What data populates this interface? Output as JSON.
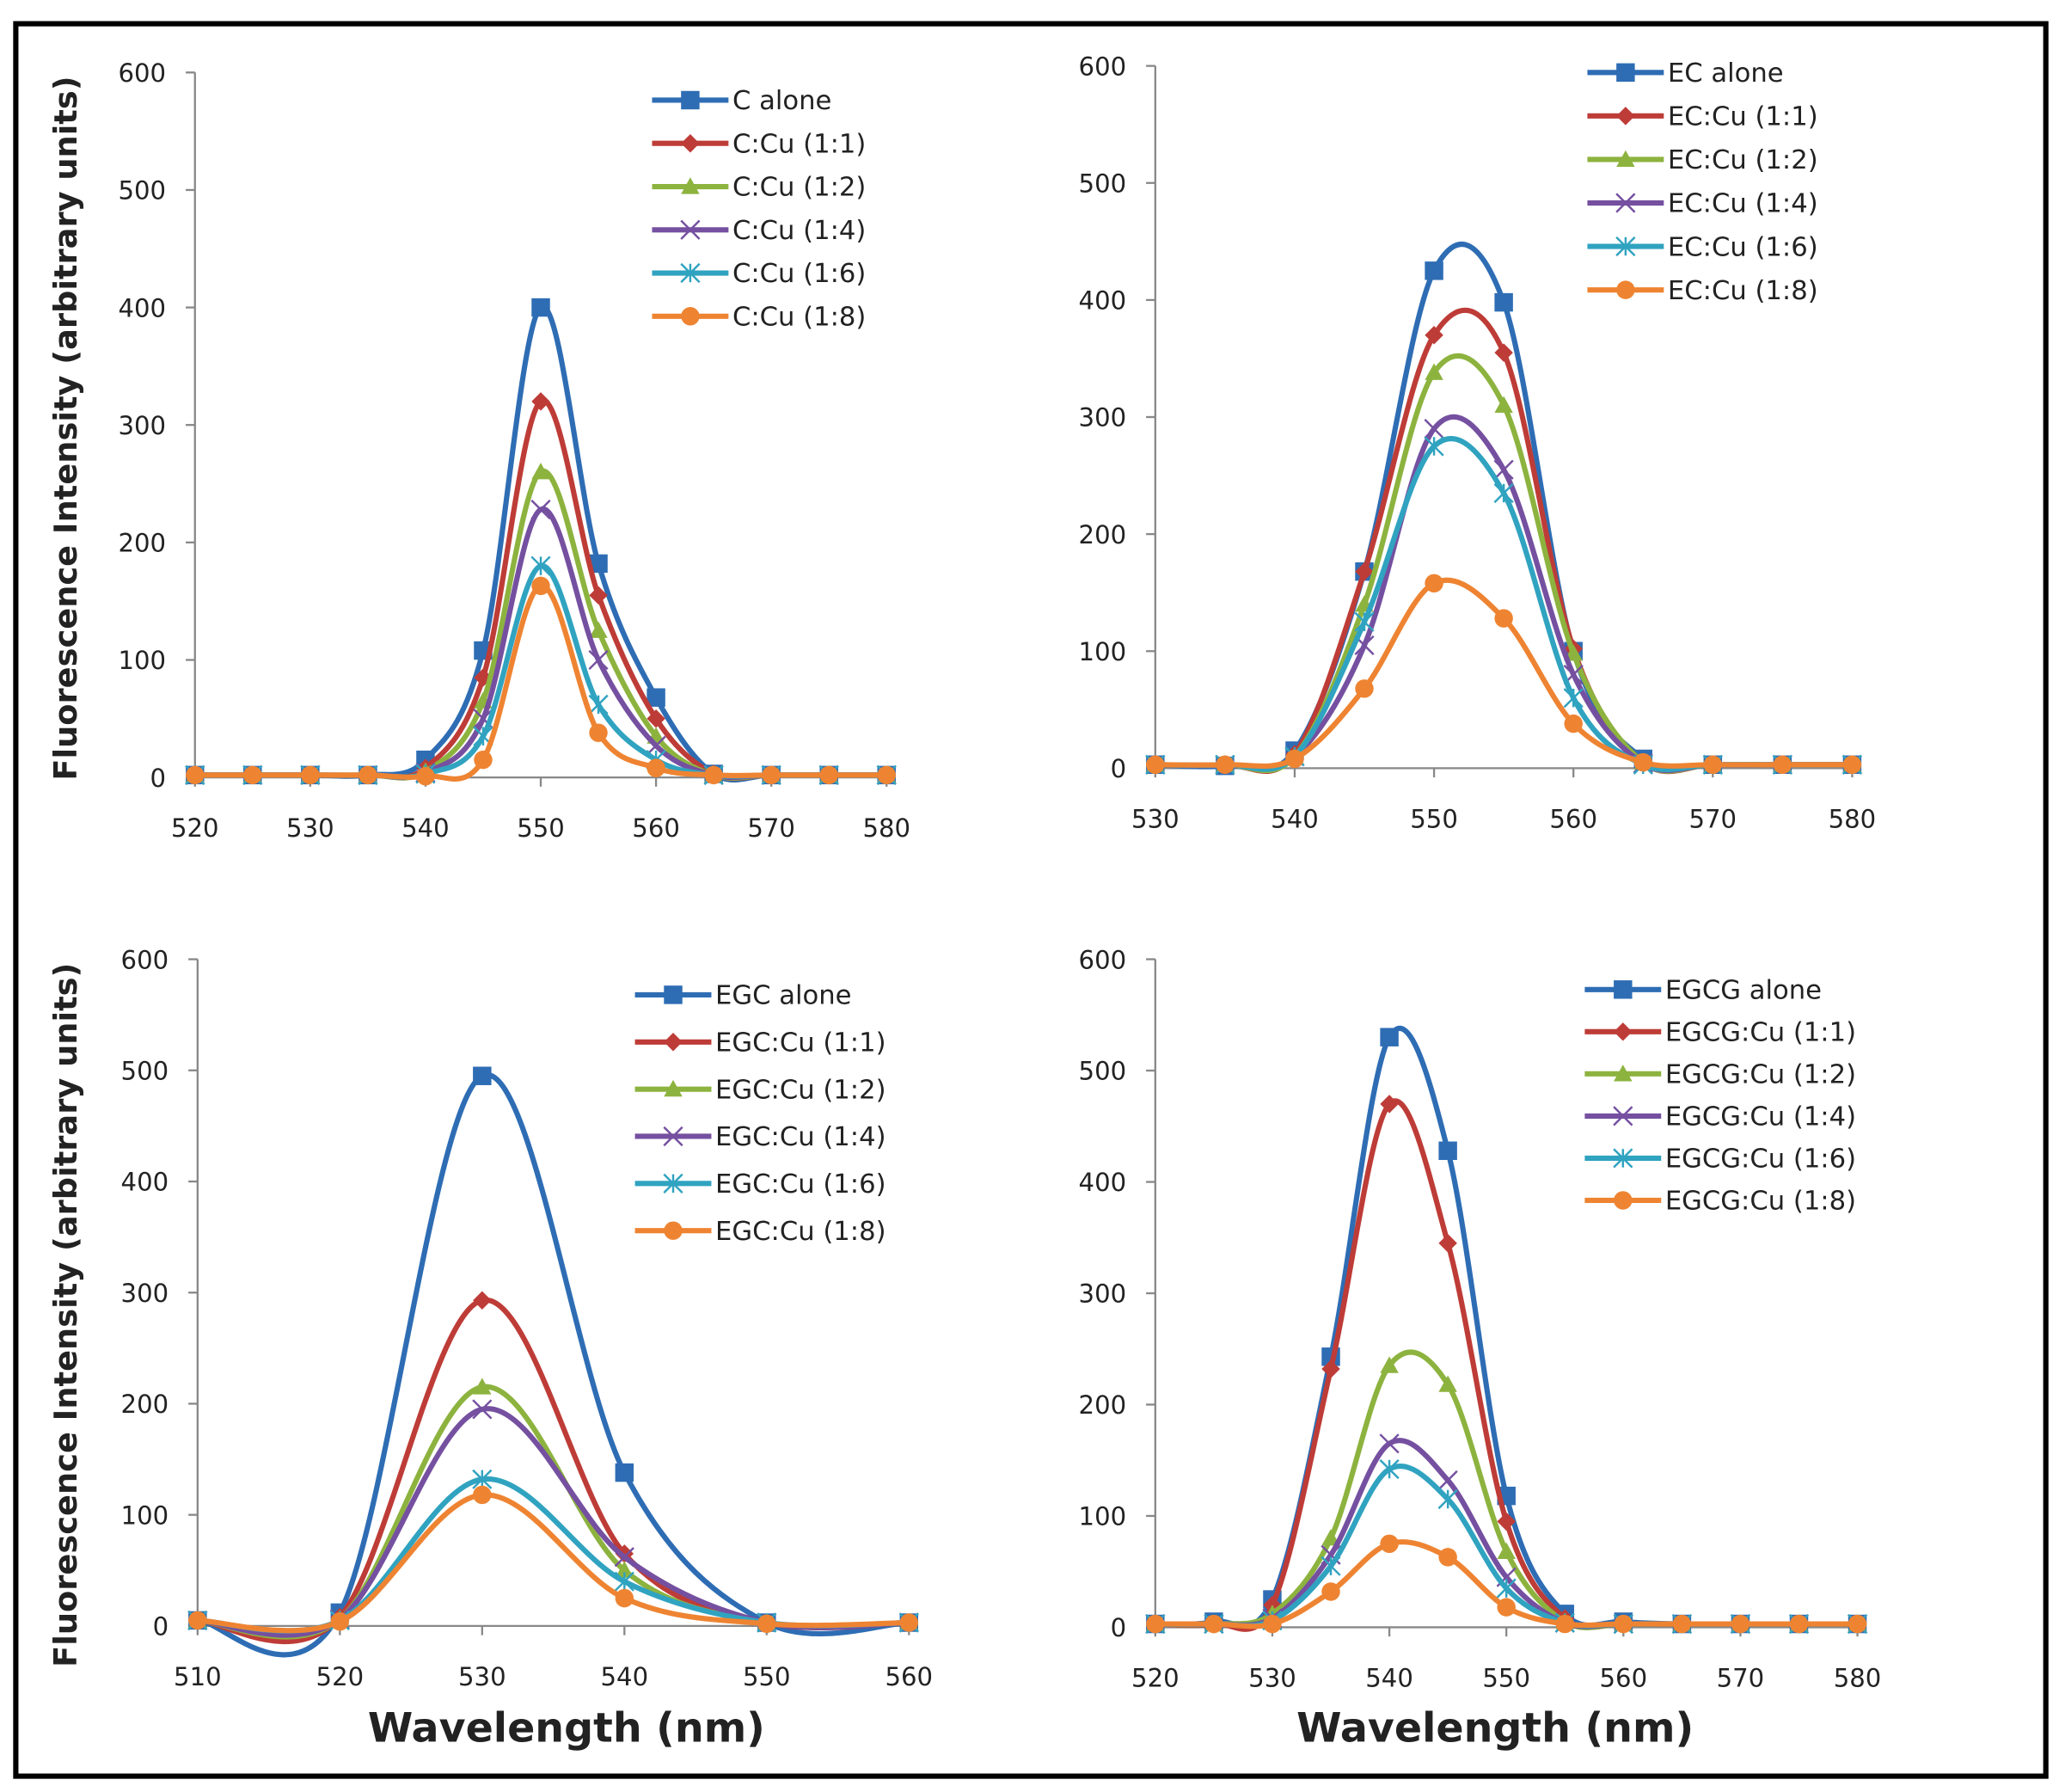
{
  "colors": [
    "#2E6DB4",
    "#BE3C37",
    "#8DB33F",
    "#7550A0",
    "#30A3C0",
    "#EE8432"
  ],
  "markers": [
    "square",
    "diamond",
    "triangle",
    "x",
    "asterisk",
    "circle"
  ],
  "chart_data": [
    {
      "type": "line",
      "title": "",
      "xlabel": "",
      "ylabel": "Fluorescence Intensity (arbitrary units)",
      "xlim": [
        520,
        580
      ],
      "ylim": [
        0,
        600
      ],
      "xticks": [
        520,
        530,
        540,
        550,
        560,
        570,
        580
      ],
      "yticks": [
        0,
        100,
        200,
        300,
        400,
        500,
        600
      ],
      "legend_position": "top-right",
      "x": [
        520,
        525,
        530,
        535,
        540,
        545,
        550,
        555,
        560,
        565,
        570,
        575,
        580
      ],
      "series": [
        {
          "name": "C alone",
          "values": [
            2,
            2,
            2,
            2,
            15,
            108,
            400,
            182,
            68,
            3,
            2,
            2,
            2
          ]
        },
        {
          "name": "C:Cu (1:1)",
          "values": [
            2,
            2,
            2,
            2,
            8,
            85,
            320,
            155,
            50,
            3,
            2,
            2,
            2
          ]
        },
        {
          "name": "C:Cu (1:2)",
          "values": [
            2,
            2,
            2,
            2,
            5,
            65,
            260,
            125,
            35,
            2,
            2,
            2,
            2
          ]
        },
        {
          "name": "C:Cu (1:4)",
          "values": [
            2,
            2,
            2,
            2,
            4,
            50,
            228,
            100,
            27,
            2,
            2,
            2,
            2
          ]
        },
        {
          "name": "C:Cu (1:6)",
          "values": [
            2,
            2,
            2,
            2,
            3,
            35,
            180,
            62,
            15,
            2,
            2,
            2,
            2
          ]
        },
        {
          "name": "C:Cu (1:8)",
          "values": [
            2,
            2,
            2,
            2,
            1,
            15,
            163,
            38,
            8,
            2,
            2,
            2,
            2
          ]
        }
      ]
    },
    {
      "type": "line",
      "title": "",
      "xlabel": "",
      "ylabel": "",
      "xlim": [
        530,
        580
      ],
      "ylim": [
        0,
        600
      ],
      "xticks": [
        530,
        540,
        550,
        560,
        570,
        580
      ],
      "yticks": [
        0,
        100,
        200,
        300,
        400,
        500,
        600
      ],
      "legend_position": "top-right",
      "x": [
        530,
        535,
        540,
        545,
        550,
        555,
        560,
        565,
        570,
        575,
        580
      ],
      "series": [
        {
          "name": "EC alone",
          "values": [
            3,
            2,
            15,
            168,
            425,
            398,
            100,
            8,
            3,
            3,
            3
          ]
        },
        {
          "name": "EC:Cu (1:1)",
          "values": [
            3,
            3,
            12,
            168,
            370,
            355,
            102,
            5,
            3,
            3,
            3
          ]
        },
        {
          "name": "EC:Cu (1:2)",
          "values": [
            3,
            3,
            10,
            140,
            338,
            310,
            98,
            5,
            3,
            3,
            3
          ]
        },
        {
          "name": "EC:Cu (1:4)",
          "values": [
            3,
            3,
            10,
            105,
            290,
            255,
            80,
            4,
            3,
            3,
            3
          ]
        },
        {
          "name": "EC:Cu (1:6)",
          "values": [
            3,
            3,
            10,
            125,
            275,
            235,
            60,
            3,
            3,
            3,
            3
          ]
        },
        {
          "name": "EC:Cu (1:8)",
          "values": [
            3,
            3,
            8,
            68,
            158,
            128,
            38,
            5,
            3,
            3,
            3
          ]
        }
      ]
    },
    {
      "type": "line",
      "title": "",
      "xlabel": "Wavelength (nm)",
      "ylabel": "Fluorescence Intensity (arbitrary units)",
      "xlim": [
        510,
        560
      ],
      "ylim": [
        0,
        600
      ],
      "xticks": [
        510,
        520,
        530,
        540,
        550,
        560
      ],
      "yticks": [
        0,
        100,
        200,
        300,
        400,
        500,
        600
      ],
      "legend_position": "top-right",
      "x": [
        510,
        520,
        530,
        540,
        550,
        560
      ],
      "series": [
        {
          "name": "EGC alone",
          "values": [
            5,
            12,
            495,
            138,
            3,
            3
          ]
        },
        {
          "name": "EGC:Cu (1:1)",
          "values": [
            5,
            8,
            293,
            65,
            3,
            3
          ]
        },
        {
          "name": "EGC:Cu (1:2)",
          "values": [
            5,
            6,
            215,
            50,
            3,
            3
          ]
        },
        {
          "name": "EGC:Cu (1:4)",
          "values": [
            5,
            6,
            195,
            62,
            3,
            3
          ]
        },
        {
          "name": "EGC:Cu (1:6)",
          "values": [
            5,
            5,
            132,
            40,
            3,
            3
          ]
        },
        {
          "name": "EGC:Cu (1:8)",
          "values": [
            5,
            4,
            118,
            25,
            2,
            3
          ]
        }
      ]
    },
    {
      "type": "line",
      "title": "",
      "xlabel": "Wavelength (nm)",
      "ylabel": "",
      "xlim": [
        520,
        580
      ],
      "ylim": [
        0,
        600
      ],
      "xticks": [
        520,
        530,
        540,
        550,
        560,
        570,
        580
      ],
      "yticks": [
        0,
        100,
        200,
        300,
        400,
        500,
        600
      ],
      "legend_position": "top-right",
      "x": [
        520,
        525,
        530,
        535,
        540,
        545,
        550,
        555,
        560,
        565,
        570,
        575,
        580
      ],
      "series": [
        {
          "name": "EGCG alone",
          "values": [
            3,
            5,
            25,
            243,
            530,
            428,
            118,
            12,
            5,
            3,
            3,
            3,
            3
          ]
        },
        {
          "name": "EGCG:Cu (1:1)",
          "values": [
            3,
            3,
            20,
            232,
            470,
            345,
            95,
            8,
            3,
            3,
            3,
            3,
            3
          ]
        },
        {
          "name": "EGCG:Cu (1:2)",
          "values": [
            3,
            3,
            12,
            80,
            235,
            218,
            68,
            5,
            3,
            3,
            3,
            3,
            3
          ]
        },
        {
          "name": "EGCG:Cu (1:4)",
          "values": [
            3,
            3,
            8,
            65,
            165,
            132,
            45,
            4,
            3,
            3,
            3,
            3,
            3
          ]
        },
        {
          "name": "EGCG:Cu (1:6)",
          "values": [
            3,
            3,
            6,
            55,
            142,
            115,
            35,
            4,
            3,
            3,
            3,
            3,
            3
          ]
        },
        {
          "name": "EGCG:Cu (1:8)",
          "values": [
            3,
            3,
            3,
            32,
            75,
            63,
            18,
            3,
            3,
            3,
            3,
            3,
            3
          ]
        }
      ]
    }
  ]
}
